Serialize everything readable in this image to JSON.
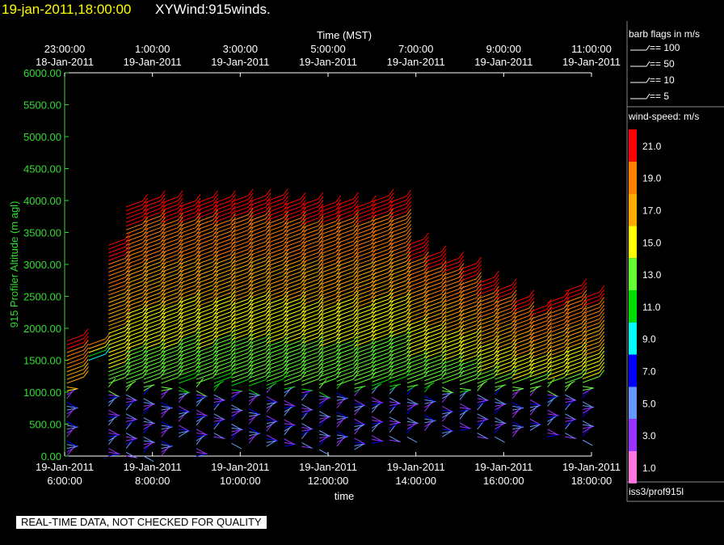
{
  "header": {
    "date_text": "19-jan-2011,18:00:00",
    "title": "XYWind:915winds."
  },
  "notice": "REAL-TIME DATA, NOT CHECKED FOR QUALITY",
  "station": "iss3/prof915l",
  "legend": {
    "barb_title": "barb flags in m/s",
    "barb_items": [
      "== 100",
      "== 50",
      "== 10",
      "== 5"
    ],
    "speed_title": "wind-speed: m/s",
    "speed_bins": [
      {
        "label": "21.0",
        "color": "#ff0000"
      },
      {
        "label": "19.0",
        "color": "#ff7f00"
      },
      {
        "label": "17.0",
        "color": "#ffaa00"
      },
      {
        "label": "15.0",
        "color": "#ffff00"
      },
      {
        "label": "13.0",
        "color": "#66ff33"
      },
      {
        "label": "11.0",
        "color": "#00dd00"
      },
      {
        "label": "9.0",
        "color": "#00ffff"
      },
      {
        "label": "7.0",
        "color": "#0000ff"
      },
      {
        "label": "5.0",
        "color": "#6699ff"
      },
      {
        "label": "3.0",
        "color": "#9933ff"
      },
      {
        "label": "1.0",
        "color": "#ff77dd"
      }
    ]
  },
  "chart_data": {
    "type": "scatter",
    "subtype": "wind-barb time-height",
    "ylabel": "915 Profiler Altitude (m agl)",
    "xlabel": "time",
    "top_axis_label": "Time (MST)",
    "ylim": [
      0,
      6000
    ],
    "yticks": [
      "0.00",
      "500.00",
      "1000.00",
      "1500.00",
      "2000.00",
      "2500.00",
      "3000.00",
      "3500.00",
      "4000.00",
      "4500.00",
      "5000.00",
      "5500.00",
      "6000.00"
    ],
    "bottom_ticks": [
      {
        "date": "19-Jan-2011",
        "time": "6:00:00"
      },
      {
        "date": "19-Jan-2011",
        "time": "8:00:00"
      },
      {
        "date": "19-Jan-2011",
        "time": "10:00:00"
      },
      {
        "date": "19-Jan-2011",
        "time": "12:00:00"
      },
      {
        "date": "19-Jan-2011",
        "time": "14:00:00"
      },
      {
        "date": "19-Jan-2011",
        "time": "16:00:00"
      },
      {
        "date": "19-Jan-2011",
        "time": "18:00:00"
      }
    ],
    "top_ticks": [
      {
        "time": "23:00:00",
        "date": "18-Jan-2011"
      },
      {
        "time": "1:00:00",
        "date": "19-Jan-2011"
      },
      {
        "time": "3:00:00",
        "date": "19-Jan-2011"
      },
      {
        "time": "5:00:00",
        "date": "19-Jan-2011"
      },
      {
        "time": "7:00:00",
        "date": "19-Jan-2011"
      },
      {
        "time": "9:00:00",
        "date": "19-Jan-2011"
      },
      {
        "time": "11:00:00",
        "date": "19-Jan-2011"
      }
    ],
    "x_hours": [
      6,
      18
    ],
    "profiles": [
      {
        "hour": 6.05,
        "top_m": 1800,
        "bottom_m": 0
      },
      {
        "hour": 6.55,
        "top_m": 1780,
        "bottom_m": 1500
      },
      {
        "hour": 7.0,
        "top_m": 3300,
        "bottom_m": 0
      },
      {
        "hour": 7.4,
        "top_m": 3900,
        "bottom_m": 0
      },
      {
        "hour": 7.8,
        "top_m": 4000,
        "bottom_m": 0
      },
      {
        "hour": 8.2,
        "top_m": 3980,
        "bottom_m": 0
      },
      {
        "hour": 8.6,
        "top_m": 3950,
        "bottom_m": 300
      },
      {
        "hour": 9.0,
        "top_m": 4000,
        "bottom_m": 0
      },
      {
        "hour": 9.4,
        "top_m": 3960,
        "bottom_m": 300
      },
      {
        "hour": 9.8,
        "top_m": 4000,
        "bottom_m": 200
      },
      {
        "hour": 10.2,
        "top_m": 4020,
        "bottom_m": 200
      },
      {
        "hour": 10.6,
        "top_m": 3990,
        "bottom_m": 150
      },
      {
        "hour": 11.0,
        "top_m": 3960,
        "bottom_m": 150
      },
      {
        "hour": 11.4,
        "top_m": 3940,
        "bottom_m": 150
      },
      {
        "hour": 11.8,
        "top_m": 3900,
        "bottom_m": 100
      },
      {
        "hour": 12.2,
        "top_m": 3960,
        "bottom_m": 150
      },
      {
        "hour": 12.6,
        "top_m": 3900,
        "bottom_m": 100
      },
      {
        "hour": 13.0,
        "top_m": 4020,
        "bottom_m": 200
      },
      {
        "hour": 13.4,
        "top_m": 4000,
        "bottom_m": 250
      },
      {
        "hour": 13.8,
        "top_m": 3300,
        "bottom_m": 300
      },
      {
        "hour": 14.2,
        "top_m": 3100,
        "bottom_m": 400
      },
      {
        "hour": 14.6,
        "top_m": 3050,
        "bottom_m": 300
      },
      {
        "hour": 15.0,
        "top_m": 2950,
        "bottom_m": 400
      },
      {
        "hour": 15.4,
        "top_m": 2700,
        "bottom_m": 300
      },
      {
        "hour": 15.8,
        "top_m": 2600,
        "bottom_m": 300
      },
      {
        "hour": 16.2,
        "top_m": 2400,
        "bottom_m": 300
      },
      {
        "hour": 16.6,
        "top_m": 2300,
        "bottom_m": 400
      },
      {
        "hour": 17.0,
        "top_m": 2450,
        "bottom_m": 300
      },
      {
        "hour": 17.4,
        "top_m": 2600,
        "bottom_m": 300
      },
      {
        "hour": 17.8,
        "top_m": 2500,
        "bottom_m": 250
      }
    ]
  }
}
